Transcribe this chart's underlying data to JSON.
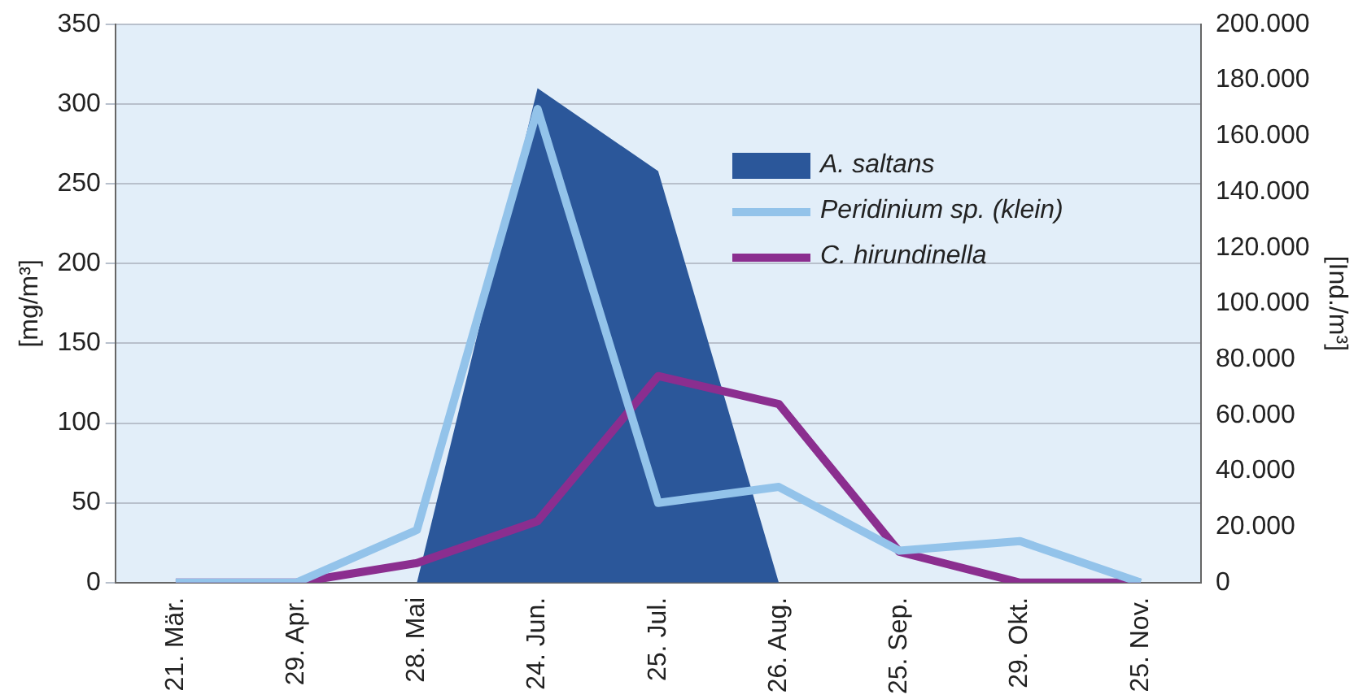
{
  "chart_data": {
    "type": "line",
    "ylabel": "[mg/m³]",
    "y2label": "[Ind./m³]",
    "categories": [
      "21. Mär.",
      "29. Apr.",
      "28. Mai",
      "24. Jun.",
      "25. Jul.",
      "26. Aug.",
      "25. Sep.",
      "29. Okt.",
      "25. Nov."
    ],
    "series": [
      {
        "name": "A. saltans",
        "type": "area",
        "color": "#2b579a",
        "values": [
          0,
          0,
          0,
          310,
          258,
          0,
          0,
          0,
          0
        ]
      },
      {
        "name": "Peridinium sp. (klein)",
        "color": "#93c3ea",
        "values": [
          0,
          0,
          33,
          297,
          50,
          60,
          20,
          26,
          0
        ]
      },
      {
        "name": "C. hirundinella",
        "color": "#8b2e8f",
        "axis": "y2",
        "values": [
          0,
          0,
          7000,
          22000,
          74000,
          64000,
          11000,
          0,
          0
        ]
      }
    ],
    "ylim": [
      0,
      350
    ],
    "yticks": [
      0,
      50,
      100,
      150,
      200,
      250,
      300,
      350
    ],
    "y2lim": [
      0,
      200000
    ],
    "y2ticks": [
      {
        "value": 0,
        "label": "0"
      },
      {
        "value": 20000,
        "label": "20.000"
      },
      {
        "value": 40000,
        "label": "40.000"
      },
      {
        "value": 60000,
        "label": "60.000"
      },
      {
        "value": 80000,
        "label": "80.000"
      },
      {
        "value": 100000,
        "label": "100.000"
      },
      {
        "value": 120000,
        "label": "120.000"
      },
      {
        "value": 140000,
        "label": "140.000"
      },
      {
        "value": 160000,
        "label": "160.000"
      },
      {
        "value": 180000,
        "label": "180.000"
      },
      {
        "value": 200000,
        "label": "200.000"
      }
    ],
    "grid": "y",
    "legend": "top right",
    "marker": "none",
    "line_style": "solid"
  }
}
